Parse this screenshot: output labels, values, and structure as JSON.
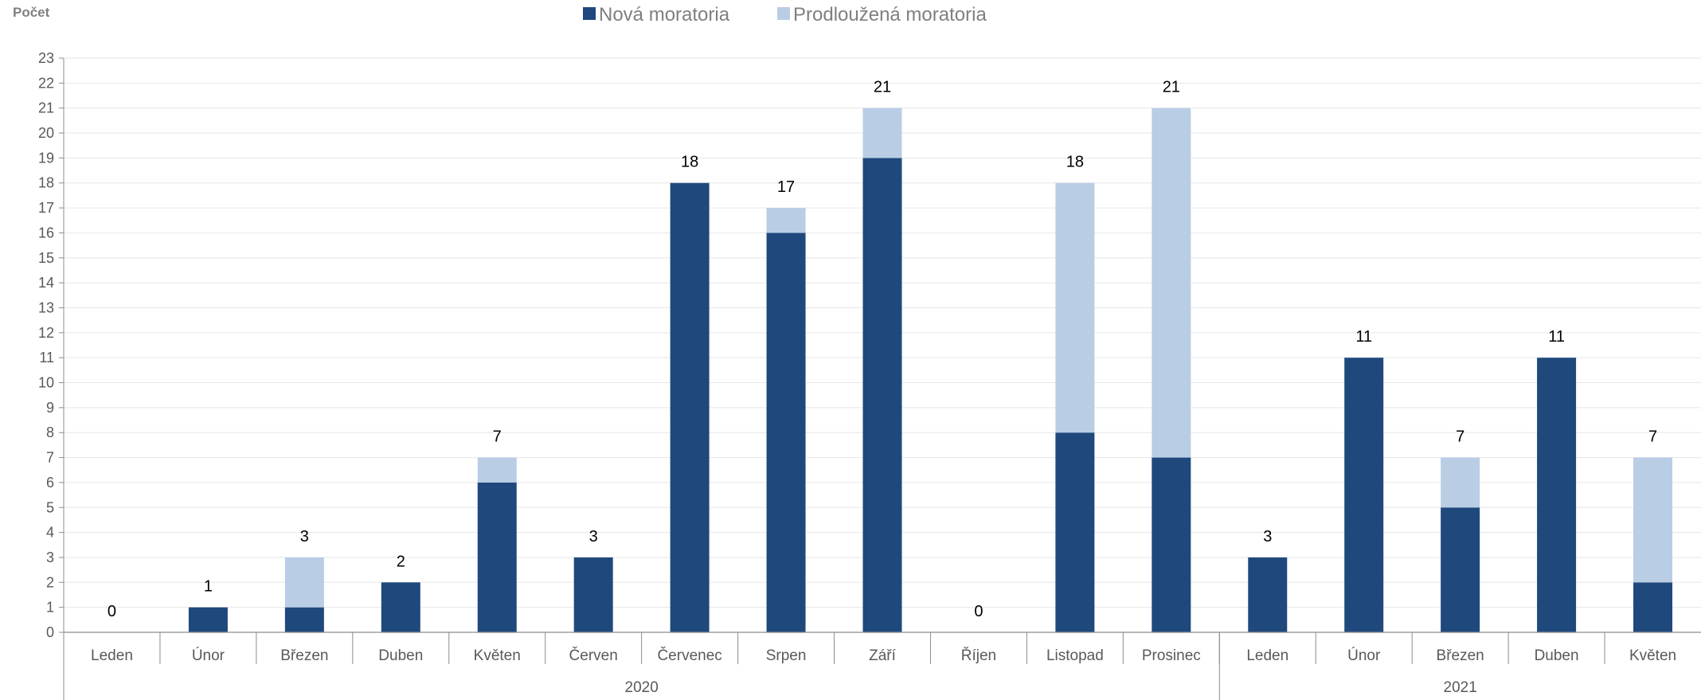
{
  "chart_data": {
    "type": "bar",
    "stacked": true,
    "ylabel": "Počet",
    "ylim": [
      0,
      23
    ],
    "ytick_step": 1,
    "grid": true,
    "legend_position": "top-center",
    "categories": [
      "Leden",
      "Únor",
      "Březen",
      "Duben",
      "Květen",
      "Červen",
      "Červenec",
      "Srpen",
      "Září",
      "Říjen",
      "Listopad",
      "Prosinec",
      "Leden",
      "Únor",
      "Březen",
      "Duben",
      "Květen"
    ],
    "groups": [
      {
        "label": "2020",
        "count": 12
      },
      {
        "label": "2021",
        "count": 5
      }
    ],
    "series": [
      {
        "name": "Nová moratoria",
        "color": "#1f497d",
        "values": [
          0,
          1,
          1,
          2,
          6,
          3,
          18,
          16,
          19,
          0,
          8,
          7,
          3,
          11,
          5,
          11,
          2
        ]
      },
      {
        "name": "Prodloužená moratoria",
        "color": "#b9cde5",
        "values": [
          0,
          0,
          2,
          0,
          1,
          0,
          0,
          1,
          2,
          0,
          10,
          14,
          0,
          0,
          2,
          0,
          5
        ]
      }
    ],
    "totals": [
      0,
      1,
      3,
      2,
      7,
      3,
      18,
      17,
      21,
      0,
      18,
      21,
      3,
      11,
      7,
      11,
      7
    ]
  }
}
